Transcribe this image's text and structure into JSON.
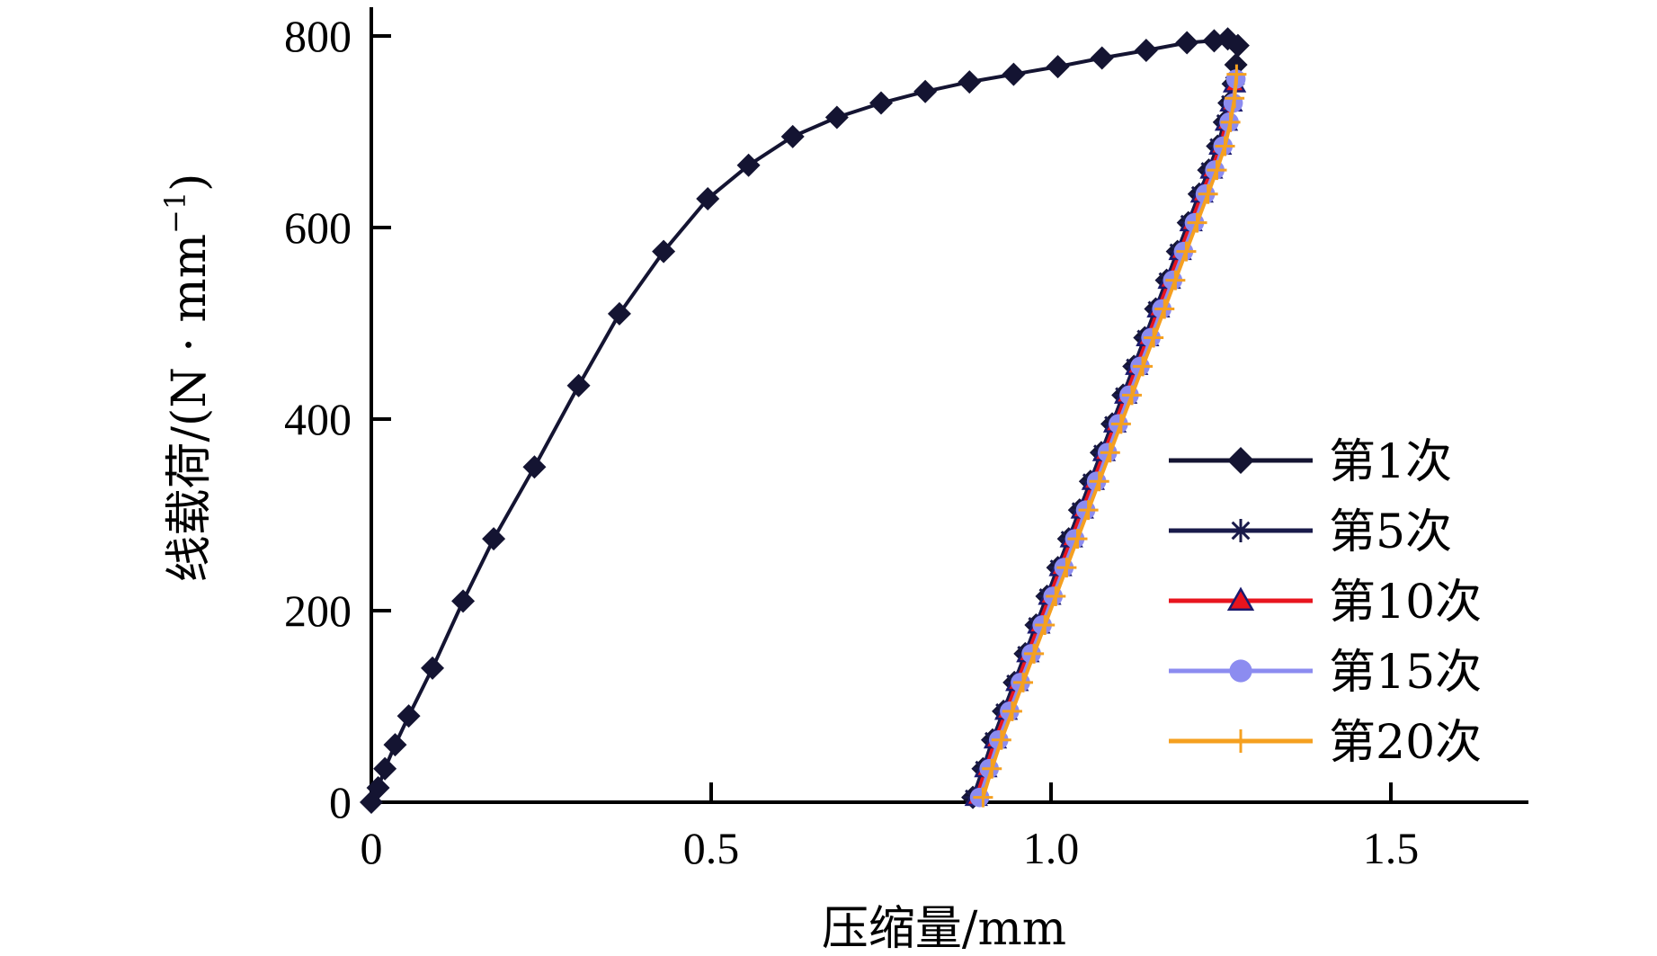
{
  "chart_data": {
    "type": "line",
    "xlabel": "压缩量/mm",
    "ylabel_main": "线载荷/(N · mm",
    "ylabel_sup": "−1",
    "ylabel_close": ")",
    "xlim": [
      0,
      1.7
    ],
    "ylim": [
      0,
      800
    ],
    "xticks": [
      0,
      0.5,
      1.0,
      1.5
    ],
    "xtick_labels": [
      "0",
      "0.5",
      "1.0",
      "1.5"
    ],
    "yticks": [
      0,
      200,
      400,
      600,
      800
    ],
    "ytick_labels": [
      "0",
      "200",
      "400",
      "600",
      "800"
    ],
    "grid": false,
    "legend_position": "bottom-right",
    "series": [
      {
        "name": "第1次",
        "color": "#141432",
        "marker": "diamond",
        "x": [
          0.0,
          0.01,
          0.02,
          0.035,
          0.055,
          0.09,
          0.135,
          0.18,
          0.24,
          0.305,
          0.365,
          0.43,
          0.495,
          0.555,
          0.62,
          0.685,
          0.75,
          0.815,
          0.88,
          0.945,
          1.01,
          1.075,
          1.14,
          1.2,
          1.24,
          1.26,
          1.275,
          1.272,
          1.268,
          1.262,
          1.255,
          1.245,
          1.232,
          1.218,
          1.202,
          1.186,
          1.17,
          1.154,
          1.138,
          1.122,
          1.106,
          1.09,
          1.074,
          1.058,
          1.042,
          1.026,
          1.01,
          0.994,
          0.978,
          0.962,
          0.946,
          0.93,
          0.914,
          0.9,
          0.885
        ],
        "y": [
          0,
          15,
          35,
          60,
          90,
          140,
          210,
          275,
          350,
          435,
          510,
          575,
          630,
          665,
          695,
          715,
          730,
          742,
          752,
          760,
          768,
          777,
          785,
          793,
          795,
          797,
          790,
          770,
          750,
          730,
          710,
          685,
          660,
          635,
          605,
          575,
          545,
          515,
          485,
          455,
          425,
          395,
          365,
          335,
          305,
          275,
          245,
          215,
          185,
          155,
          125,
          95,
          65,
          35,
          5
        ]
      },
      {
        "name": "第5次",
        "color": "#191a4a",
        "marker": "asterisk",
        "x": [
          0.885,
          0.9,
          0.914,
          0.93,
          0.946,
          0.962,
          0.978,
          0.994,
          1.01,
          1.026,
          1.042,
          1.058,
          1.074,
          1.09,
          1.106,
          1.122,
          1.138,
          1.154,
          1.17,
          1.186,
          1.202,
          1.218,
          1.232,
          1.245,
          1.255,
          1.262,
          1.268
        ],
        "y": [
          5,
          35,
          65,
          95,
          125,
          155,
          185,
          215,
          245,
          275,
          305,
          335,
          365,
          395,
          425,
          455,
          485,
          515,
          545,
          575,
          605,
          635,
          660,
          685,
          710,
          730,
          750
        ]
      },
      {
        "name": "第10次",
        "color": "#e8141e",
        "marker": "triangle",
        "x": [
          0.89,
          0.904,
          0.918,
          0.934,
          0.95,
          0.966,
          0.982,
          0.998,
          1.014,
          1.03,
          1.046,
          1.062,
          1.078,
          1.094,
          1.11,
          1.126,
          1.142,
          1.158,
          1.174,
          1.19,
          1.206,
          1.222,
          1.236,
          1.249,
          1.258,
          1.265,
          1.27
        ],
        "y": [
          5,
          35,
          65,
          95,
          125,
          155,
          185,
          215,
          245,
          275,
          305,
          335,
          365,
          395,
          425,
          455,
          485,
          515,
          545,
          575,
          605,
          635,
          660,
          685,
          710,
          730,
          750
        ]
      },
      {
        "name": "第15次",
        "color": "#8c8cf0",
        "marker": "circle",
        "x": [
          0.895,
          0.909,
          0.923,
          0.939,
          0.955,
          0.971,
          0.987,
          1.003,
          1.019,
          1.035,
          1.051,
          1.067,
          1.083,
          1.099,
          1.115,
          1.131,
          1.147,
          1.163,
          1.179,
          1.195,
          1.211,
          1.227,
          1.241,
          1.253,
          1.262,
          1.268,
          1.272
        ],
        "y": [
          5,
          35,
          65,
          95,
          125,
          155,
          185,
          215,
          245,
          275,
          305,
          335,
          365,
          395,
          425,
          455,
          485,
          515,
          545,
          575,
          605,
          635,
          660,
          685,
          710,
          730,
          755
        ]
      },
      {
        "name": "第20次",
        "color": "#f5a020",
        "marker": "plus",
        "x": [
          0.9,
          0.913,
          0.927,
          0.943,
          0.959,
          0.975,
          0.991,
          1.007,
          1.023,
          1.039,
          1.055,
          1.071,
          1.087,
          1.103,
          1.119,
          1.135,
          1.151,
          1.167,
          1.183,
          1.199,
          1.215,
          1.231,
          1.244,
          1.256,
          1.264,
          1.27,
          1.273
        ],
        "y": [
          5,
          35,
          65,
          95,
          125,
          155,
          185,
          215,
          245,
          275,
          305,
          335,
          365,
          395,
          425,
          455,
          485,
          515,
          545,
          575,
          605,
          635,
          660,
          685,
          710,
          735,
          760
        ]
      }
    ]
  }
}
